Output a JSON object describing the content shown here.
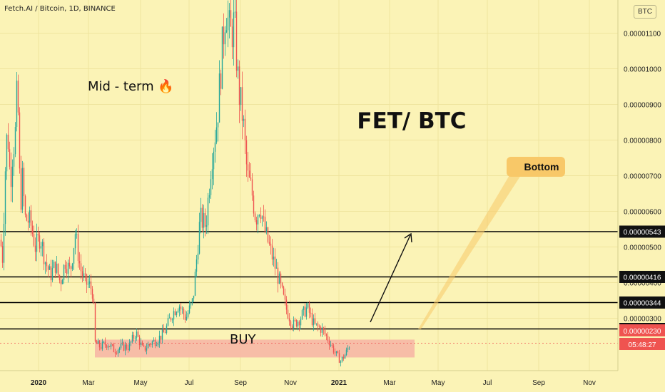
{
  "header": {
    "symbol": "Fetch.AI / Bitcoin, 1D, BINANCE",
    "currency_badge": "BTC"
  },
  "colors": {
    "background": "#fbf3b6",
    "up_candle": "#26a69a",
    "down_candle": "#ef5350",
    "buy_zone": "#f7b9a6",
    "level_line": "#000000",
    "callout": "#f8c868",
    "current_price": "#ef5350"
  },
  "chart_data": {
    "type": "candlestick",
    "title": "FET/ BTC",
    "annotations": {
      "mid_term": "Mid - term 🔥",
      "buy": "BUY",
      "bottom": "Bottom"
    },
    "y_axis": {
      "range": [
        1.7e-06,
        1.2e-05
      ],
      "ticks": [
        "0.00001100",
        "0.00001000",
        "0.00000900",
        "0.00000800",
        "0.00000700",
        "0.00000600",
        "0.00000500",
        "0.00000400",
        "0.00000300"
      ]
    },
    "x_axis": {
      "labels": [
        "2020",
        "Mar",
        "May",
        "Jul",
        "Sep",
        "Nov",
        "2021",
        "Mar",
        "May",
        "Jul",
        "Sep",
        "Nov"
      ]
    },
    "levels": [
      "0.00000543",
      "0.00000416",
      "0.00000344",
      "0.00000270"
    ],
    "current_price": "0.00000230",
    "countdown": "05:48:27",
    "buy_zone": {
      "from_date": "Mar 2020",
      "to_date": "Apr 2021",
      "low": 1.9e-06,
      "high": 2.4e-06
    },
    "arrow_target": {
      "date": "Apr 2021",
      "price": 5e-06
    },
    "price_path": [
      [
        0,
        5.2
      ],
      [
        3,
        4.7
      ],
      [
        7,
        7.2
      ],
      [
        10,
        8.4
      ],
      [
        14,
        6.8
      ],
      [
        17,
        7.6
      ],
      [
        21,
        8.2
      ],
      [
        24,
        9.6
      ],
      [
        28,
        6.1
      ],
      [
        31,
        6.9
      ],
      [
        35,
        5.8
      ],
      [
        42,
        5.7
      ],
      [
        49,
        5.0
      ],
      [
        56,
        5.3
      ],
      [
        63,
        4.6
      ],
      [
        70,
        4.2
      ],
      [
        77,
        4.5
      ],
      [
        84,
        4.0
      ],
      [
        91,
        4.6
      ],
      [
        98,
        4.3
      ],
      [
        105,
        5.4
      ],
      [
        112,
        4.4
      ],
      [
        119,
        4.0
      ],
      [
        126,
        3.9
      ],
      [
        130,
        3.7
      ],
      [
        133,
        2.3
      ],
      [
        140,
        2.2
      ],
      [
        150,
        2.3
      ],
      [
        160,
        2.1
      ],
      [
        170,
        2.2
      ],
      [
        180,
        2.2
      ],
      [
        190,
        2.6
      ],
      [
        200,
        2.1
      ],
      [
        210,
        2.3
      ],
      [
        220,
        2.4
      ],
      [
        230,
        2.6
      ],
      [
        240,
        3.1
      ],
      [
        250,
        3.4
      ],
      [
        260,
        3.0
      ],
      [
        270,
        3.5
      ],
      [
        280,
        5.8
      ],
      [
        288,
        5.6
      ],
      [
        296,
        7.5
      ],
      [
        304,
        8.6
      ],
      [
        310,
        10.3
      ],
      [
        316,
        11.8
      ],
      [
        322,
        10.9
      ],
      [
        328,
        11.3
      ],
      [
        334,
        9.4
      ],
      [
        340,
        8.6
      ],
      [
        346,
        7.0
      ],
      [
        352,
        6.6
      ],
      [
        358,
        5.8
      ],
      [
        364,
        6.2
      ],
      [
        370,
        5.5
      ],
      [
        380,
        4.8
      ],
      [
        390,
        4.1
      ],
      [
        400,
        3.3
      ],
      [
        410,
        2.8
      ],
      [
        420,
        3.0
      ],
      [
        430,
        3.3
      ],
      [
        440,
        2.8
      ],
      [
        450,
        2.7
      ],
      [
        460,
        2.4
      ],
      [
        470,
        2.0
      ],
      [
        477,
        1.8
      ],
      [
        484,
        2.0
      ],
      [
        490,
        2.3
      ]
    ]
  }
}
